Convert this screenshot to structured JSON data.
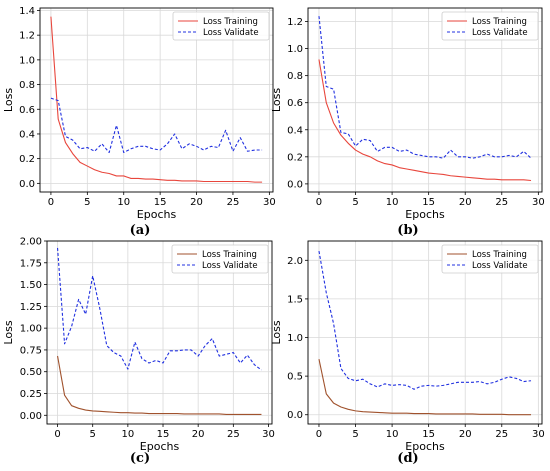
{
  "chart_data": [
    {
      "type": "line",
      "caption": "(a)",
      "xlabel": "Epochs",
      "ylabel": "Loss",
      "xlim": [
        -1.5,
        30.5
      ],
      "ylim": [
        -0.07,
        1.42
      ],
      "xticks": [
        0,
        5,
        10,
        15,
        20,
        25,
        30
      ],
      "yticks": [
        0.0,
        0.2,
        0.4,
        0.6,
        0.8,
        1.0,
        1.2,
        1.4
      ],
      "ytick_labels": [
        "0.0",
        "0.2",
        "0.4",
        "0.6",
        "0.8",
        "1.0",
        "1.2",
        "1.4"
      ],
      "grid": true,
      "legend_position": "top-right",
      "series": [
        {
          "name": "Loss Training",
          "style": "solid",
          "color": "#e8463c",
          "x": [
            0,
            1,
            2,
            3,
            4,
            5,
            6,
            7,
            8,
            9,
            10,
            11,
            12,
            13,
            14,
            15,
            16,
            17,
            18,
            19,
            20,
            21,
            22,
            23,
            24,
            25,
            26,
            27,
            28,
            29
          ],
          "y": [
            1.35,
            0.52,
            0.33,
            0.24,
            0.17,
            0.14,
            0.11,
            0.09,
            0.08,
            0.06,
            0.06,
            0.04,
            0.04,
            0.035,
            0.035,
            0.03,
            0.025,
            0.025,
            0.02,
            0.02,
            0.02,
            0.015,
            0.015,
            0.015,
            0.015,
            0.015,
            0.015,
            0.015,
            0.01,
            0.01
          ]
        },
        {
          "name": "Loss Validate",
          "style": "dashed",
          "color": "#2030e0",
          "x": [
            0,
            1,
            2,
            3,
            4,
            5,
            6,
            7,
            8,
            9,
            10,
            11,
            12,
            13,
            14,
            15,
            16,
            17,
            18,
            19,
            20,
            21,
            22,
            23,
            24,
            25,
            26,
            27,
            28,
            29
          ],
          "y": [
            0.69,
            0.67,
            0.38,
            0.35,
            0.28,
            0.29,
            0.26,
            0.32,
            0.25,
            0.47,
            0.25,
            0.28,
            0.3,
            0.3,
            0.28,
            0.27,
            0.32,
            0.4,
            0.28,
            0.32,
            0.3,
            0.27,
            0.3,
            0.29,
            0.43,
            0.26,
            0.37,
            0.26,
            0.27,
            0.27
          ]
        }
      ]
    },
    {
      "type": "line",
      "caption": "(b)",
      "xlabel": "Epochs",
      "ylabel": "Loss",
      "xlim": [
        -1.5,
        30.5
      ],
      "ylim": [
        -0.06,
        1.3
      ],
      "xticks": [
        0,
        5,
        10,
        15,
        20,
        25,
        30
      ],
      "yticks": [
        0.0,
        0.2,
        0.4,
        0.6,
        0.8,
        1.0,
        1.2
      ],
      "ytick_labels": [
        "0.0",
        "0.2",
        "0.4",
        "0.6",
        "0.8",
        "1.0",
        "1.2"
      ],
      "grid": true,
      "legend_position": "top-right",
      "series": [
        {
          "name": "Loss Training",
          "style": "solid",
          "color": "#e8463c",
          "x": [
            0,
            1,
            2,
            3,
            4,
            5,
            6,
            7,
            8,
            9,
            10,
            11,
            12,
            13,
            14,
            15,
            16,
            17,
            18,
            19,
            20,
            21,
            22,
            23,
            24,
            25,
            26,
            27,
            28,
            29
          ],
          "y": [
            0.92,
            0.6,
            0.45,
            0.36,
            0.3,
            0.25,
            0.22,
            0.2,
            0.17,
            0.15,
            0.14,
            0.12,
            0.11,
            0.1,
            0.09,
            0.08,
            0.075,
            0.07,
            0.06,
            0.055,
            0.05,
            0.045,
            0.04,
            0.035,
            0.035,
            0.03,
            0.03,
            0.03,
            0.03,
            0.025
          ]
        },
        {
          "name": "Loss Validate",
          "style": "dashed",
          "color": "#2030e0",
          "x": [
            0,
            1,
            2,
            3,
            4,
            5,
            6,
            7,
            8,
            9,
            10,
            11,
            12,
            13,
            14,
            15,
            16,
            17,
            18,
            19,
            20,
            21,
            22,
            23,
            24,
            25,
            26,
            27,
            28,
            29
          ],
          "y": [
            1.24,
            0.72,
            0.7,
            0.38,
            0.37,
            0.28,
            0.33,
            0.32,
            0.24,
            0.27,
            0.27,
            0.24,
            0.25,
            0.22,
            0.21,
            0.2,
            0.2,
            0.19,
            0.25,
            0.2,
            0.2,
            0.19,
            0.2,
            0.22,
            0.2,
            0.2,
            0.21,
            0.2,
            0.24,
            0.19
          ]
        }
      ]
    },
    {
      "type": "line",
      "caption": "(c)",
      "xlabel": "Epochs",
      "ylabel": "Loss",
      "xlim": [
        -1.5,
        30.5
      ],
      "ylim": [
        -0.1,
        2.0
      ],
      "xticks": [
        0,
        5,
        10,
        15,
        20,
        25,
        30
      ],
      "yticks": [
        0.0,
        0.25,
        0.5,
        0.75,
        1.0,
        1.25,
        1.5,
        1.75,
        2.0
      ],
      "ytick_labels": [
        "0.00",
        "0.25",
        "0.50",
        "0.75",
        "1.00",
        "1.25",
        "1.50",
        "1.75",
        "2.00"
      ],
      "grid": true,
      "legend_position": "top-right",
      "series": [
        {
          "name": "Loss Training",
          "style": "solid",
          "color": "#a0522d",
          "x": [
            0,
            1,
            2,
            3,
            4,
            5,
            6,
            7,
            8,
            9,
            10,
            11,
            12,
            13,
            14,
            15,
            16,
            17,
            18,
            19,
            20,
            21,
            22,
            23,
            24,
            25,
            26,
            27,
            28,
            29
          ],
          "y": [
            0.68,
            0.23,
            0.11,
            0.08,
            0.06,
            0.05,
            0.045,
            0.04,
            0.035,
            0.03,
            0.03,
            0.025,
            0.025,
            0.02,
            0.02,
            0.02,
            0.02,
            0.02,
            0.015,
            0.015,
            0.015,
            0.015,
            0.015,
            0.015,
            0.01,
            0.01,
            0.01,
            0.01,
            0.01,
            0.01
          ]
        },
        {
          "name": "Loss Validate",
          "style": "dashed",
          "color": "#2030e0",
          "x": [
            0,
            1,
            2,
            3,
            4,
            5,
            6,
            7,
            8,
            9,
            10,
            11,
            12,
            13,
            14,
            15,
            16,
            17,
            18,
            19,
            20,
            21,
            22,
            23,
            24,
            25,
            26,
            27,
            28,
            29
          ],
          "y": [
            1.92,
            0.82,
            1.02,
            1.33,
            1.16,
            1.6,
            1.23,
            0.8,
            0.72,
            0.68,
            0.53,
            0.84,
            0.65,
            0.6,
            0.63,
            0.6,
            0.74,
            0.74,
            0.75,
            0.75,
            0.68,
            0.8,
            0.88,
            0.68,
            0.7,
            0.72,
            0.6,
            0.69,
            0.58,
            0.52
          ]
        }
      ]
    },
    {
      "type": "line",
      "caption": "(d)",
      "xlabel": "Epochs",
      "ylabel": "Loss",
      "xlim": [
        -1.5,
        30.5
      ],
      "ylim": [
        -0.12,
        2.25
      ],
      "xticks": [
        0,
        5,
        10,
        15,
        20,
        25,
        30
      ],
      "yticks": [
        0.0,
        0.5,
        1.0,
        1.5,
        2.0
      ],
      "ytick_labels": [
        "0.0",
        "0.5",
        "1.0",
        "1.5",
        "2.0"
      ],
      "grid": true,
      "legend_position": "top-right",
      "series": [
        {
          "name": "Loss Training",
          "style": "solid",
          "color": "#a0522d",
          "x": [
            0,
            1,
            2,
            3,
            4,
            5,
            6,
            7,
            8,
            9,
            10,
            11,
            12,
            13,
            14,
            15,
            16,
            17,
            18,
            19,
            20,
            21,
            22,
            23,
            24,
            25,
            26,
            27,
            28,
            29
          ],
          "y": [
            0.72,
            0.27,
            0.15,
            0.1,
            0.07,
            0.05,
            0.04,
            0.035,
            0.03,
            0.025,
            0.02,
            0.02,
            0.02,
            0.015,
            0.015,
            0.015,
            0.01,
            0.01,
            0.01,
            0.01,
            0.01,
            0.01,
            0.005,
            0.005,
            0.005,
            0.005,
            0.0,
            0.0,
            0.0,
            0.0
          ]
        },
        {
          "name": "Loss Validate",
          "style": "dashed",
          "color": "#2030e0",
          "x": [
            0,
            1,
            2,
            3,
            4,
            5,
            6,
            7,
            8,
            9,
            10,
            11,
            12,
            13,
            14,
            15,
            16,
            17,
            18,
            19,
            20,
            21,
            22,
            23,
            24,
            25,
            26,
            27,
            28,
            29
          ],
          "y": [
            2.12,
            1.58,
            1.18,
            0.6,
            0.47,
            0.44,
            0.46,
            0.4,
            0.36,
            0.4,
            0.38,
            0.39,
            0.38,
            0.33,
            0.37,
            0.38,
            0.37,
            0.38,
            0.4,
            0.42,
            0.42,
            0.42,
            0.43,
            0.4,
            0.42,
            0.46,
            0.49,
            0.47,
            0.43,
            0.44
          ]
        }
      ]
    }
  ]
}
